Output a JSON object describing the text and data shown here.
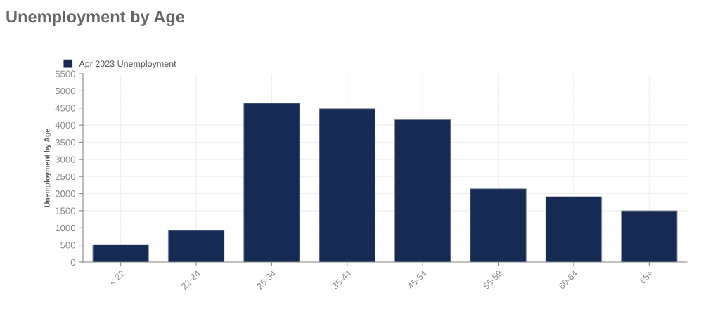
{
  "chart_data": {
    "type": "bar",
    "title": "Unemployment by Age",
    "ylabel": "Unemployment by Age",
    "categories": [
      "< 22",
      "22-24",
      "25-34",
      "35-44",
      "45-54",
      "55-59",
      "60-64",
      "65+"
    ],
    "series": [
      {
        "name": "Apr 2023 Unemployment",
        "color": "#172a52",
        "values": [
          510,
          925,
          4640,
          4480,
          4160,
          2140,
          1910,
          1500
        ]
      }
    ],
    "ylim": [
      0,
      5500
    ],
    "yticks": [
      0,
      500,
      1000,
      1500,
      2000,
      2500,
      3000,
      3500,
      4000,
      4500,
      5000,
      5500
    ],
    "grid": true,
    "legend": "top left"
  }
}
